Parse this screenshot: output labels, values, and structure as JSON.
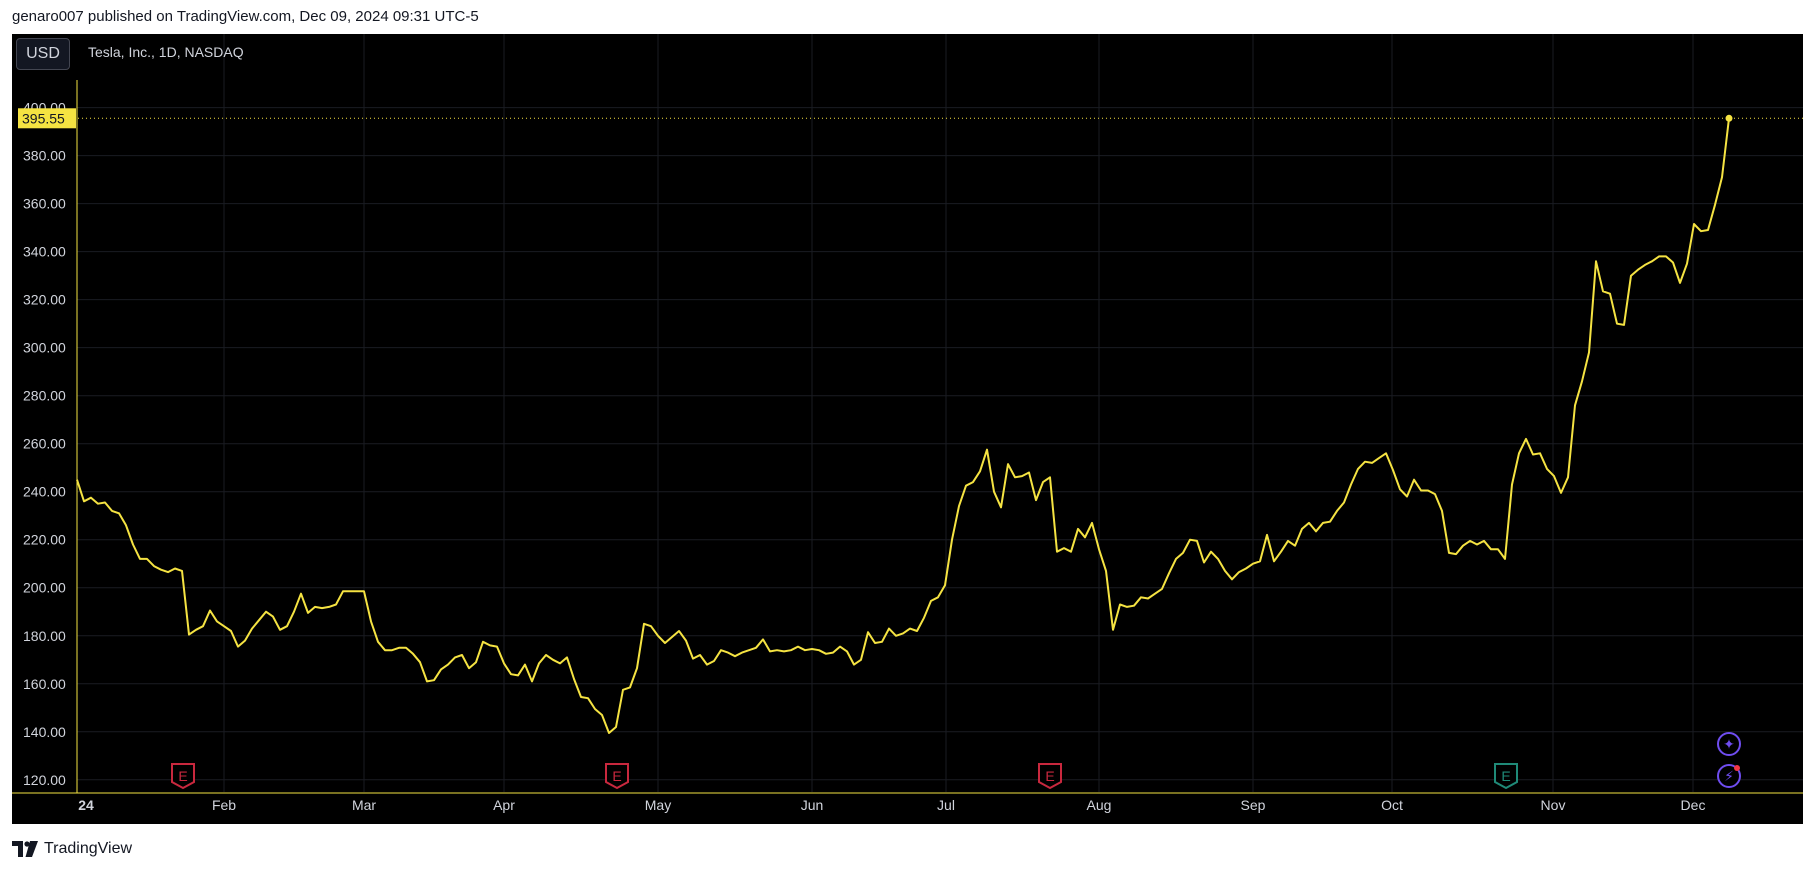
{
  "header": {
    "published_text": "genaro007 published on TradingView.com, Dec 09, 2024 09:31 UTC-5"
  },
  "toolbar": {
    "currency_label": "USD"
  },
  "symbol": {
    "title": "Tesla, Inc., 1D, NASDAQ"
  },
  "brand": {
    "name": "TradingView"
  },
  "colors": {
    "line": "#f5e342",
    "background": "#000000",
    "text": "#d1d4dc",
    "earnings_red": "#c9283e",
    "earnings_green": "#1f8a78",
    "event_purple": "#6f4df0"
  },
  "chart_data": {
    "type": "line",
    "series": [
      {
        "values": [
          245.0,
          236.0,
          237.5,
          235.0,
          235.5,
          232.0,
          231.0,
          226.0,
          218.0,
          212.0,
          212.0,
          209.0,
          207.5,
          206.5,
          208.0,
          207.0,
          180.5,
          182.5,
          184.0,
          190.5,
          186.0,
          184.0,
          182.0,
          175.5,
          178.0,
          183.0,
          186.5,
          190.0,
          188.0,
          182.5,
          184.0,
          190.0,
          197.5,
          189.5,
          192.0,
          191.5,
          192.0,
          193.0,
          198.5,
          198.5,
          198.5,
          198.5,
          186.0,
          177.5,
          174.0,
          174.0,
          175.0,
          175.0,
          172.5,
          169.0,
          161.0,
          161.5,
          166.0,
          168.0,
          171.0,
          172.0,
          166.5,
          169.0,
          177.5,
          176.0,
          175.5,
          168.5,
          164.0,
          163.5,
          168.0,
          161.0,
          168.5,
          172.0,
          170.0,
          168.5,
          171.0,
          162.0,
          154.5,
          154.0,
          149.5,
          147.0,
          139.5,
          142.0,
          157.5,
          158.5,
          166.5,
          185.0,
          184.0,
          180.0,
          177.0,
          179.5,
          182.0,
          178.0,
          170.5,
          172.0,
          168.0,
          169.5,
          174.0,
          173.0,
          171.5,
          173.0,
          174.0,
          175.0,
          178.5,
          173.5,
          174.0,
          173.5,
          174.0,
          175.5,
          174.0,
          174.5,
          174.0,
          172.5,
          173.0,
          175.5,
          173.5,
          168.0,
          170.0,
          181.5,
          177.0,
          177.5,
          183.0,
          180.0,
          181.0,
          183.0,
          182.0,
          187.5,
          194.5,
          196.0,
          201.0,
          220.0,
          234.0,
          242.5,
          244.0,
          248.5,
          257.5,
          240.0,
          233.5,
          251.5,
          246.0,
          246.5,
          248.0,
          236.5,
          244.0,
          246.0,
          215.0,
          216.5,
          215.0,
          224.5,
          221.0,
          227.0,
          216.0,
          207.0,
          182.5,
          193.0,
          192.0,
          192.5,
          196.0,
          195.5,
          197.5,
          199.5,
          206.0,
          212.0,
          214.5,
          220.0,
          219.5,
          210.5,
          215.0,
          212.0,
          207.0,
          203.5,
          206.5,
          208.0,
          210.0,
          211.0,
          222.0,
          211.0,
          215.0,
          219.5,
          217.5,
          224.5,
          227.0,
          223.5,
          227.0,
          227.5,
          232.0,
          235.5,
          243.0,
          249.5,
          252.5,
          252.0,
          254.0,
          256.0,
          249.0,
          241.0,
          238.0,
          245.0,
          240.5,
          240.5,
          239.0,
          232.0,
          214.5,
          214.0,
          217.5,
          219.5,
          218.0,
          219.5,
          216.0,
          216.0,
          212.0,
          243.0,
          256.0,
          262.0,
          255.5,
          256.0,
          249.5,
          246.5,
          239.5,
          246.0,
          276.0,
          286.0,
          298.0,
          336.0,
          323.5,
          322.5,
          310.0,
          309.5,
          330.0,
          332.5,
          334.5,
          336.0,
          338.0,
          338.0,
          335.5,
          327.0,
          335.0,
          351.5,
          348.5,
          349.0,
          359.5,
          371.0,
          395.55
        ]
      }
    ],
    "x_labels": [
      "24",
      "Feb",
      "Mar",
      "Apr",
      "May",
      "Jun",
      "Jul",
      "Aug",
      "Sep",
      "Oct",
      "Nov",
      "Dec"
    ],
    "y_ticks": [
      "120.00",
      "140.00",
      "160.00",
      "180.00",
      "200.00",
      "220.00",
      "240.00",
      "260.00",
      "280.00",
      "300.00",
      "320.00",
      "340.00",
      "360.00",
      "380.00",
      "400.00"
    ],
    "ylim": [
      114.5,
      411.5
    ],
    "last_price_label": "395.55",
    "last_price": 395.55,
    "grid": true,
    "earnings_markers": [
      {
        "label": "E",
        "color": "#c9283e"
      },
      {
        "label": "E",
        "color": "#c9283e"
      },
      {
        "label": "E",
        "color": "#c9283e"
      },
      {
        "label": "E",
        "color": "#1f8a78"
      }
    ],
    "event_icons": [
      {
        "name": "sparkle-icon",
        "glyph": "✦"
      },
      {
        "name": "lightning-icon",
        "glyph": "⚡"
      }
    ]
  }
}
